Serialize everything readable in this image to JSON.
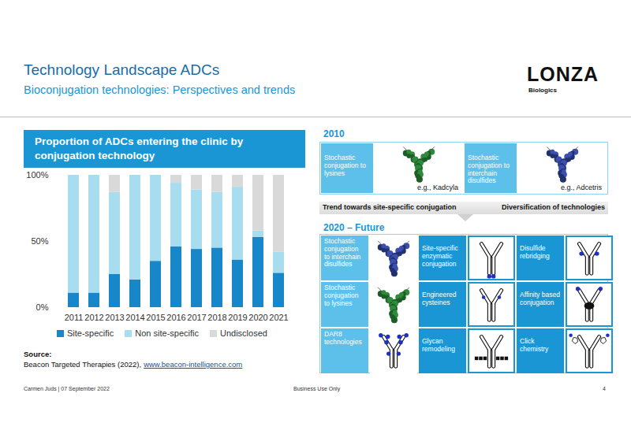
{
  "header": {
    "title": "Technology Landscape ADCs",
    "subtitle": "Bioconjugation technologies: Perspectives and trends",
    "logo": "LONZA",
    "logo_subtitle": "Biologics"
  },
  "chart_data": {
    "type": "bar",
    "stacked": true,
    "title": "Proportion of ADCs entering the clinic by conjugation technology",
    "categories": [
      "2011",
      "2012",
      "2013",
      "2014",
      "2015",
      "2016",
      "2017",
      "2018",
      "2019",
      "2020",
      "2021"
    ],
    "series": [
      {
        "name": "Site-specific",
        "color": "#1787c9",
        "values": [
          11,
          11,
          25,
          21,
          35,
          46,
          44,
          45,
          36,
          53,
          26
        ]
      },
      {
        "name": "Non site-specific",
        "color": "#a8dcef",
        "values": [
          89,
          89,
          62,
          79,
          65,
          48,
          45,
          42,
          55,
          5,
          16
        ]
      },
      {
        "name": "Undisclosed",
        "color": "#d9d9d9",
        "values": [
          0,
          0,
          13,
          0,
          0,
          6,
          11,
          13,
          9,
          42,
          58
        ]
      }
    ],
    "ylim": [
      0,
      100
    ],
    "yticks": [
      {
        "value": 0,
        "label": "0%"
      },
      {
        "value": 50,
        "label": "50%"
      },
      {
        "value": 100,
        "label": "100%"
      }
    ],
    "grid": false,
    "legend": "bottom"
  },
  "source": {
    "label": "Source:",
    "text": "Beacon Targeted Therapies (2022),",
    "link": "www.beacon-intelligence.com"
  },
  "diagram": {
    "past": {
      "label": "2010",
      "items": [
        {
          "text": "Stochastic conjugation to lysines",
          "example": "e.g., Kadcyla"
        },
        {
          "text": "Stochastic conjugation to interchain disulfides",
          "example": "e.g., Adcetris"
        }
      ]
    },
    "trends": [
      "Trend towards site-specific conjugation",
      "Diversification of technologies"
    ],
    "future": {
      "label": "2020 – Future",
      "rows": [
        [
          "Stochastic conjugation to interchain disulfides",
          "Site-specific enzymatic conjugation",
          "Disulfide rebridging"
        ],
        [
          "Stochastic conjugation to lysines",
          "Engineered cysteines",
          "Affinity based conjugation"
        ],
        [
          "DAR8 technologies",
          "Glycan remodeling",
          "Click chemistry"
        ]
      ]
    }
  },
  "footer": {
    "author": "Carmen Juds | 07 September 2022",
    "classification": "Business Use Only",
    "page": "4"
  }
}
